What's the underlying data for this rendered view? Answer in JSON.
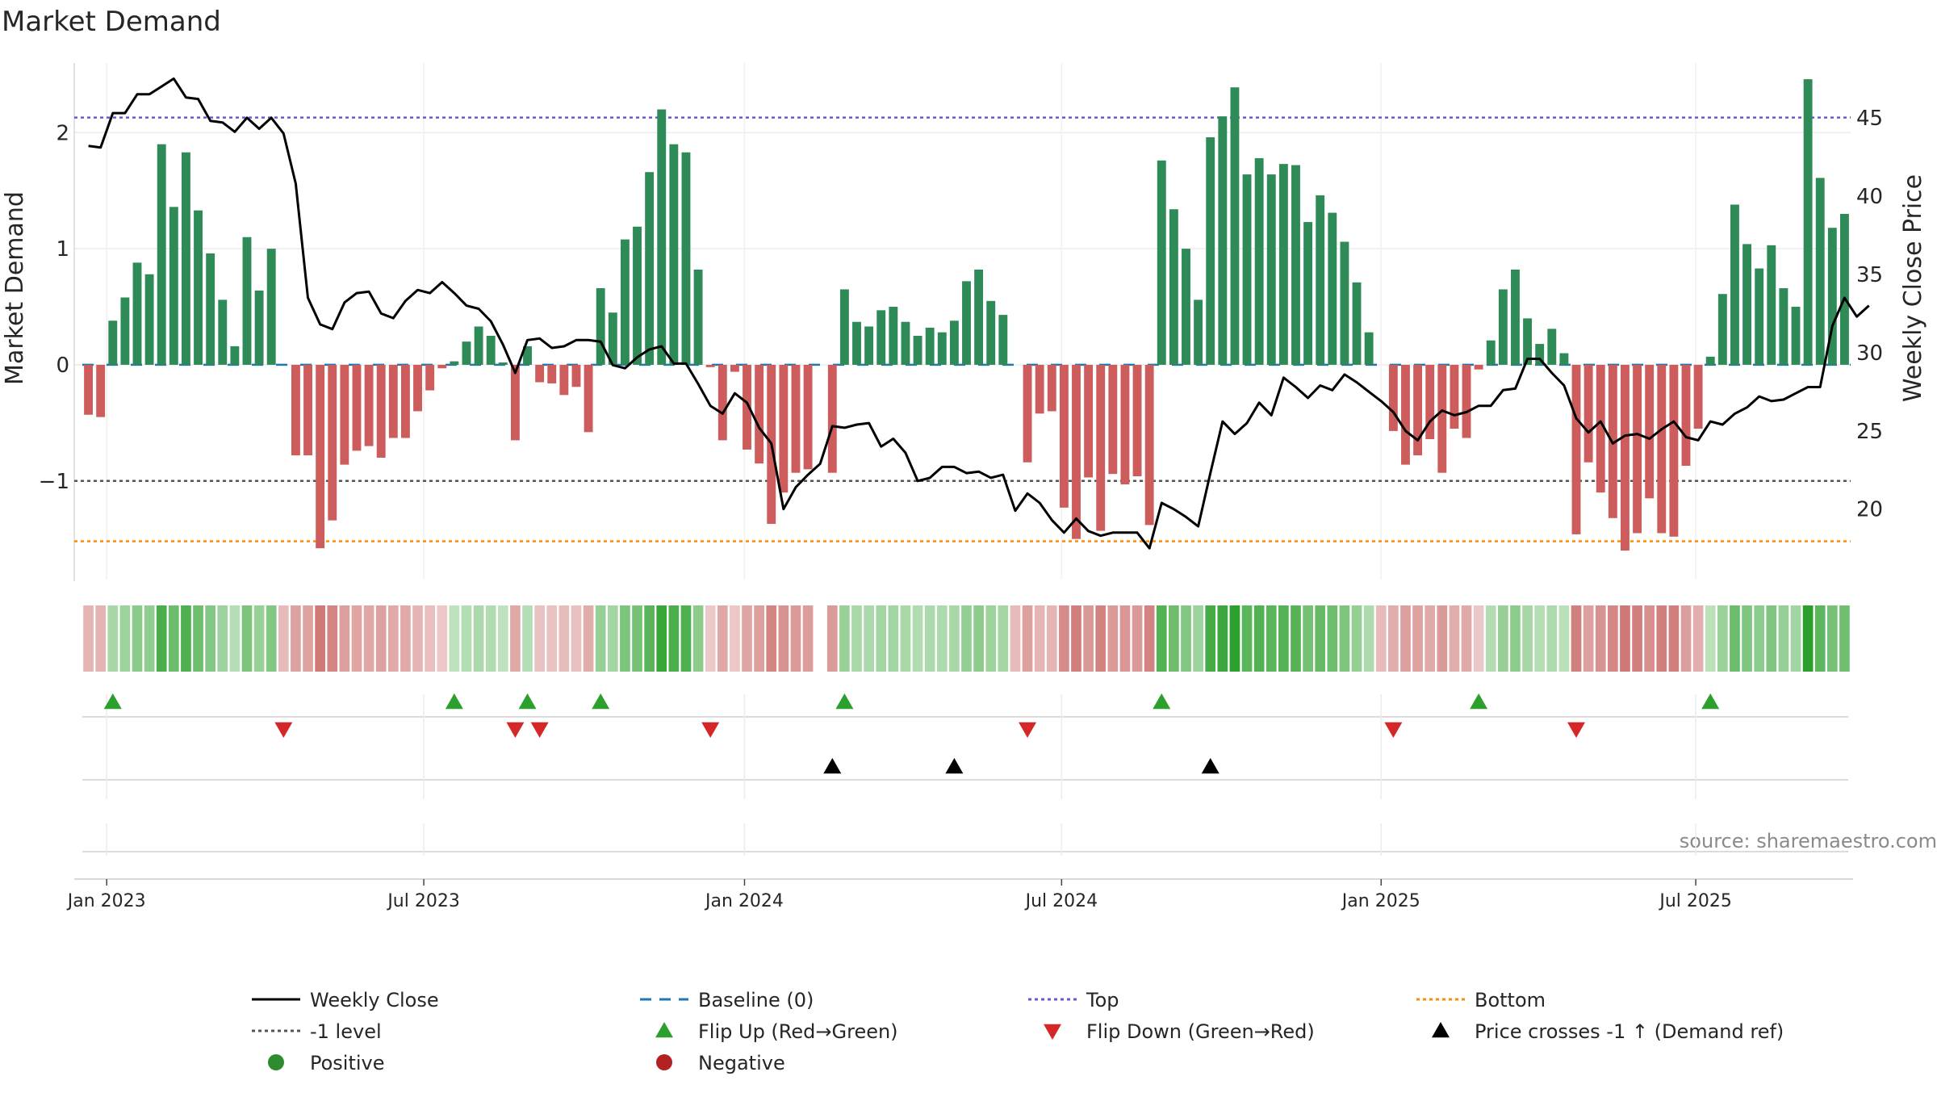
{
  "chart_data": {
    "type": "bar",
    "title": "Market Demand",
    "ylabel_left": "Market Demand",
    "ylabel_right": "Weekly Close Price",
    "source": "source: sharemaestro.com",
    "ylim_left": [
      -1.85,
      2.6
    ],
    "ylim_right": [
      15.5,
      48.5
    ],
    "yticks_left": [
      {
        "v": 2,
        "label": "2"
      },
      {
        "v": 1,
        "label": "1"
      },
      {
        "v": 0,
        "label": "0"
      },
      {
        "v": -1,
        "label": "−1"
      }
    ],
    "yticks_right": [
      {
        "v": 45,
        "label": "45"
      },
      {
        "v": 40,
        "label": "40"
      },
      {
        "v": 35,
        "label": "35"
      },
      {
        "v": 30,
        "label": "30"
      },
      {
        "v": 25,
        "label": "25"
      },
      {
        "v": 20,
        "label": "20"
      }
    ],
    "xticks": [
      {
        "week": 1.5,
        "label": "Jan 2023"
      },
      {
        "week": 27.5,
        "label": "Jul 2023"
      },
      {
        "week": 53.8,
        "label": "Jan 2024"
      },
      {
        "week": 79.8,
        "label": "Jul 2024"
      },
      {
        "week": 106,
        "label": "Jan 2025"
      },
      {
        "week": 131.8,
        "label": "Jul 2025"
      }
    ],
    "reference_levels": {
      "top": 2.13,
      "bottom": -1.52,
      "minus_one": -1,
      "baseline": 0
    },
    "colors": {
      "positive": "#2e8b57",
      "negative": "#cd5c5c",
      "price": "#000000",
      "baseline": "#1f77b4",
      "top": "#6a5acd",
      "bottom": "#ff8c00",
      "minus_one": "#555555",
      "flip_up": "#2ca02c",
      "flip_down": "#d62728",
      "cross": "#000000",
      "dot_positive": "#2e8b2e",
      "dot_negative": "#b22222"
    },
    "series": [
      {
        "name": "Market Demand",
        "values": [
          -0.43,
          -0.45,
          0.38,
          0.58,
          0.88,
          0.78,
          1.9,
          1.36,
          1.83,
          1.33,
          0.96,
          0.56,
          0.16,
          1.1,
          0.64,
          1.0,
          null,
          -0.78,
          -0.78,
          -1.58,
          -1.34,
          -0.86,
          -0.74,
          -0.7,
          -0.8,
          -0.63,
          -0.63,
          -0.4,
          -0.22,
          -0.03,
          0.03,
          0.2,
          0.33,
          0.25,
          0.02,
          -0.65,
          0.16,
          -0.15,
          -0.16,
          -0.26,
          -0.19,
          -0.58,
          0.66,
          0.45,
          1.08,
          1.19,
          1.66,
          2.2,
          1.9,
          1.83,
          0.82,
          -0.02,
          -0.65,
          -0.06,
          -0.73,
          -0.85,
          -1.37,
          -1.1,
          -0.93,
          -0.9,
          null,
          -0.93,
          0.65,
          0.37,
          0.33,
          0.47,
          0.5,
          0.37,
          0.25,
          0.32,
          0.28,
          0.38,
          0.72,
          0.82,
          0.55,
          0.43,
          null,
          -0.84,
          -0.42,
          -0.4,
          -1.23,
          -1.5,
          -0.97,
          -1.43,
          -0.94,
          -1.03,
          -0.96,
          -1.38,
          1.76,
          1.34,
          1.0,
          0.56,
          1.96,
          2.14,
          2.39,
          1.64,
          1.78,
          1.64,
          1.73,
          1.72,
          1.23,
          1.46,
          1.31,
          1.06,
          0.71,
          0.28,
          null,
          -0.57,
          -0.86,
          -0.78,
          -0.64,
          -0.93,
          -0.55,
          -0.63,
          -0.04,
          0.21,
          0.65,
          0.82,
          0.4,
          0.18,
          0.31,
          0.1,
          -1.46,
          -0.84,
          -1.1,
          -1.32,
          -1.6,
          -1.45,
          -1.15,
          -1.45,
          -1.48,
          -0.87,
          -0.55,
          0.07,
          0.61,
          1.38,
          1.04,
          0.83,
          1.03,
          0.66,
          0.5,
          2.46,
          1.61,
          1.18,
          1.3
        ]
      },
      {
        "name": "Weekly Close",
        "values": [
          43.2,
          43.1,
          45.3,
          45.3,
          46.5,
          46.5,
          47.0,
          47.5,
          46.3,
          46.2,
          44.8,
          44.7,
          44.1,
          45.0,
          44.3,
          45.0,
          44.0,
          40.8,
          33.5,
          31.8,
          31.5,
          33.2,
          33.8,
          33.9,
          32.5,
          32.2,
          33.3,
          34.0,
          33.8,
          34.5,
          33.8,
          33.0,
          32.8,
          32.0,
          30.5,
          28.7,
          30.8,
          30.9,
          30.3,
          30.4,
          30.8,
          30.8,
          30.7,
          29.2,
          29.0,
          29.7,
          30.2,
          30.4,
          29.3,
          29.3,
          28.0,
          26.6,
          26.1,
          27.4,
          26.8,
          25.2,
          24.2,
          20.0,
          21.4,
          22.2,
          22.9,
          25.3,
          25.2,
          25.4,
          25.5,
          24.0,
          24.5,
          23.6,
          21.8,
          22.0,
          22.7,
          22.7,
          22.3,
          22.4,
          22.0,
          22.2,
          19.9,
          21.0,
          20.4,
          19.3,
          18.5,
          19.4,
          18.6,
          18.3,
          18.5,
          18.5,
          18.5,
          17.5,
          20.4,
          20.0,
          19.5,
          18.9,
          22.3,
          25.6,
          24.8,
          25.5,
          26.8,
          26.0,
          28.4,
          27.8,
          27.1,
          27.9,
          27.6,
          28.6,
          28.1,
          27.5,
          26.9,
          26.2,
          25.0,
          24.4,
          25.6,
          26.3,
          26.0,
          26.2,
          26.6,
          26.6,
          27.6,
          27.7,
          29.6,
          29.6,
          28.7,
          27.9,
          25.8,
          24.9,
          25.6,
          24.2,
          24.7,
          24.8,
          24.5,
          25.1,
          25.6,
          24.6,
          24.4,
          25.6,
          25.4,
          26.1,
          26.5,
          27.2,
          26.9,
          27.0,
          27.4,
          27.8,
          27.8,
          31.7,
          33.5,
          32.3,
          33.0
        ]
      }
    ],
    "heat_strip": [
      -0.43,
      -0.45,
      0.38,
      0.58,
      0.88,
      0.78,
      1.9,
      1.36,
      1.83,
      1.33,
      0.96,
      0.56,
      0.16,
      1.1,
      0.64,
      1.0,
      -0.3,
      -0.78,
      -0.78,
      -1.58,
      -1.34,
      -0.86,
      -0.74,
      -0.7,
      -0.8,
      -0.63,
      -0.63,
      -0.4,
      -0.22,
      -0.03,
      0.03,
      0.2,
      0.33,
      0.25,
      0.02,
      -0.65,
      0.16,
      -0.15,
      -0.16,
      -0.26,
      -0.19,
      -0.58,
      0.66,
      0.45,
      1.08,
      1.19,
      1.66,
      2.2,
      1.9,
      1.83,
      0.82,
      -0.02,
      -0.65,
      -0.06,
      -0.73,
      -0.85,
      -1.37,
      -1.1,
      -0.93,
      -0.9,
      null,
      -0.93,
      0.65,
      0.37,
      0.33,
      0.47,
      0.5,
      0.37,
      0.25,
      0.32,
      0.28,
      0.38,
      0.72,
      0.82,
      0.55,
      0.43,
      -0.3,
      -0.84,
      -0.42,
      -0.4,
      -1.23,
      -1.5,
      -0.97,
      -1.43,
      -0.94,
      -1.03,
      -0.96,
      -1.38,
      1.76,
      1.34,
      1.0,
      0.56,
      1.96,
      2.14,
      2.39,
      1.64,
      1.78,
      1.64,
      1.73,
      1.72,
      1.23,
      1.46,
      1.31,
      1.06,
      0.71,
      0.28,
      -0.3,
      -0.57,
      -0.86,
      -0.78,
      -0.64,
      -0.93,
      -0.55,
      -0.63,
      -0.04,
      0.21,
      0.65,
      0.82,
      0.4,
      0.18,
      0.31,
      0.1,
      -1.46,
      -0.84,
      -1.1,
      -1.32,
      -1.6,
      -1.45,
      -1.15,
      -1.45,
      -1.48,
      -0.87,
      -0.55,
      0.07,
      0.61,
      1.38,
      1.04,
      0.83,
      1.03,
      0.66,
      0.5,
      2.46,
      1.61,
      1.18,
      1.3
    ],
    "events": {
      "flip_up": [
        2,
        30,
        36,
        42,
        62,
        88,
        114,
        133
      ],
      "flip_down": [
        16,
        35,
        37,
        51,
        77,
        107,
        122
      ],
      "price_crosses": [
        61,
        71,
        92
      ]
    },
    "legend": [
      {
        "label": "Weekly Close",
        "symbol": "line-solid",
        "color": "#000000"
      },
      {
        "label": "Baseline (0)",
        "symbol": "line-dashed",
        "color": "#1f77b4"
      },
      {
        "label": "Top",
        "symbol": "line-dotted",
        "color": "#6a5acd"
      },
      {
        "label": "Bottom",
        "symbol": "line-dotted",
        "color": "#ff8c00"
      },
      {
        "label": "-1 level",
        "symbol": "line-dotted",
        "color": "#555555"
      },
      {
        "label": "Flip Up (Red→Green)",
        "symbol": "triangle-up",
        "color": "#2ca02c"
      },
      {
        "label": "Flip Down (Green→Red)",
        "symbol": "triangle-down",
        "color": "#d62728"
      },
      {
        "label": "Price crosses -1 ↑ (Demand ref)",
        "symbol": "triangle-up",
        "color": "#000000"
      },
      {
        "label": "Positive",
        "symbol": "dot",
        "color": "#2e8b2e"
      },
      {
        "label": "Negative",
        "symbol": "dot",
        "color": "#b22222"
      }
    ]
  }
}
